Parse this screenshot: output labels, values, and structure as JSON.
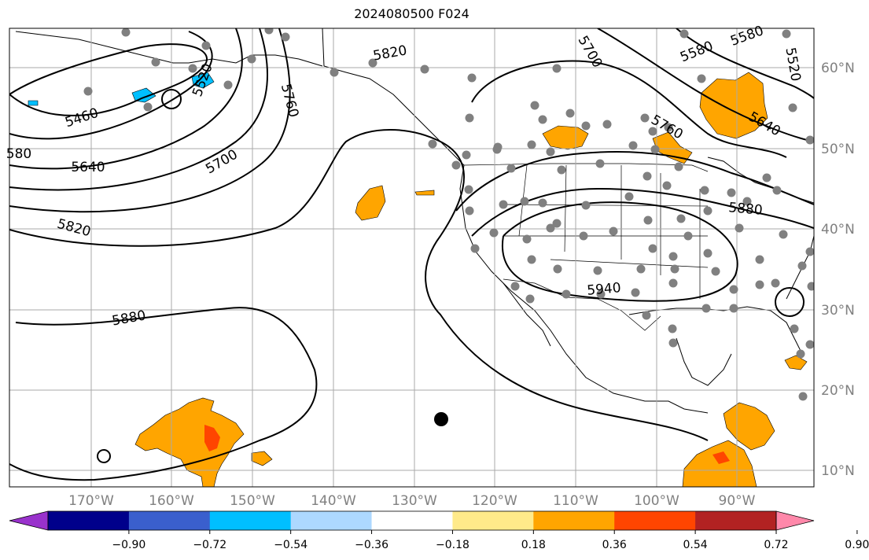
{
  "title": "2024080500 F024",
  "lon_labels": [
    "170°W",
    "160°W",
    "150°W",
    "140°W",
    "130°W",
    "120°W",
    "110°W",
    "100°W",
    "90°W"
  ],
  "lat_labels": [
    "60°N",
    "50°N",
    "40°N",
    "30°N",
    "20°N",
    "10°N"
  ],
  "contour_labels": [
    "5460",
    "5520",
    "5580",
    "5580",
    "5520",
    "5640",
    "5640",
    "5700",
    "5700",
    "5760",
    "5760",
    "5820",
    "5820",
    "5880",
    "5880",
    "5940",
    "580"
  ],
  "colorbar": {
    "tick_labels": [
      "−0.90",
      "−0.72",
      "−0.54",
      "−0.36",
      "−0.18",
      "0.18",
      "0.36",
      "0.54",
      "0.72",
      "0.90"
    ],
    "colors": [
      "#9932cc",
      "#00008b",
      "#3a5fcd",
      "#00bfff",
      "#add8ff",
      "#ffffff",
      "#ffea8a",
      "#ffa500",
      "#ff4500",
      "#b22222",
      "#ff88aa"
    ]
  },
  "colors": {
    "land_line": "#000000",
    "grid": "#aaaaaa",
    "station_dot": "#808080",
    "axis_label": "#808080"
  }
}
